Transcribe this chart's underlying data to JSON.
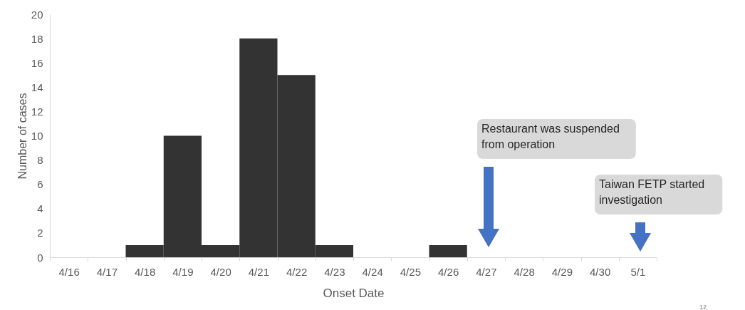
{
  "chart_data": {
    "type": "bar",
    "xlabel": "Onset Date",
    "ylabel": "Number of cases",
    "categories": [
      "4/16",
      "4/17",
      "4/18",
      "4/19",
      "4/20",
      "4/21",
      "4/22",
      "4/23",
      "4/24",
      "4/25",
      "4/26",
      "4/27",
      "4/28",
      "4/29",
      "4/30",
      "5/1"
    ],
    "values": [
      0,
      0,
      1,
      10,
      1,
      18,
      15,
      1,
      0,
      0,
      1,
      0,
      0,
      0,
      0,
      0
    ],
    "color": "#333333",
    "ylim": [
      0,
      20
    ],
    "yticks": [
      0,
      2,
      4,
      6,
      8,
      10,
      12,
      14,
      16,
      18,
      20
    ],
    "grid": false,
    "annotations": [
      "Restaurant was suspended\nfrom operation",
      "Taiwan FETP started\ninvestigation",
      "12"
    ]
  }
}
